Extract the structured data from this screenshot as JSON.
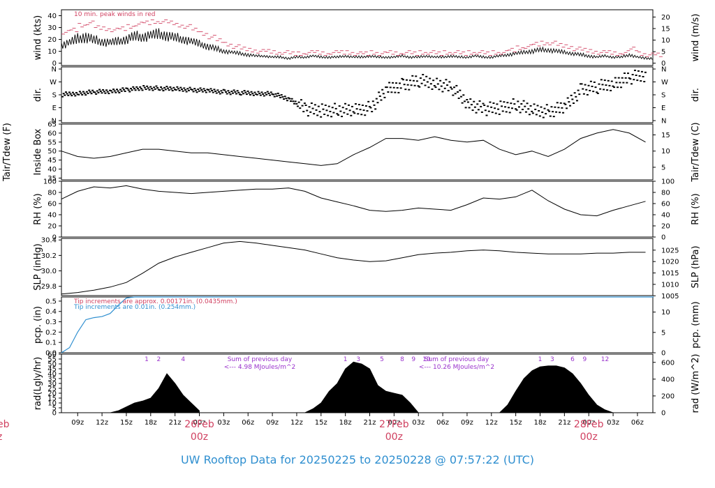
{
  "chart_data": {
    "type": "line",
    "title": "UW Rooftop Data for 20250225  to  20250228 @ 07:57:22  (UTC)",
    "x_ticks": [
      "09z",
      "12z",
      "15z",
      "18z",
      "21z",
      "00z",
      "03z",
      "06z",
      "09z",
      "12z",
      "15z",
      "18z",
      "21z",
      "00z",
      "03z",
      "06z",
      "09z",
      "12z",
      "15z",
      "18z",
      "21z",
      "00z",
      "03z",
      "06z"
    ],
    "date_labels": [
      {
        "date": "26Feb",
        "time": "00z"
      },
      {
        "date": "27Feb",
        "time": "00z"
      },
      {
        "date": "28Feb",
        "time": "00z"
      }
    ],
    "edge_date_label": {
      "date": "eb",
      "time": "z"
    },
    "x_range_hours": [
      7.0,
      79.9
    ],
    "colors": {
      "line": "#000000",
      "peak": "#d04060",
      "precip_blue": "#2f8fd0",
      "radiation_note": "#9932cc"
    },
    "panels": {
      "wind": {
        "ylabel_left": "wind (kts)",
        "ylabel_right": "wind (m/s)",
        "left_ticks": [
          "0",
          "10",
          "20",
          "30",
          "40"
        ],
        "right_ticks": [
          "0",
          "5",
          "10",
          "15",
          "20"
        ],
        "ylim": [
          -2,
          45
        ],
        "note": "10 min. peak winds in red",
        "x": [
          7,
          8,
          9,
          10,
          11,
          12,
          13,
          14,
          15,
          16,
          17,
          18,
          19,
          20,
          21,
          22,
          23,
          24,
          25,
          26,
          27,
          28,
          29,
          30,
          31,
          32,
          33,
          34,
          35,
          36,
          37,
          38,
          39,
          40,
          41,
          42,
          43,
          44,
          45,
          46,
          47,
          48,
          49,
          50,
          51,
          52,
          53,
          54,
          55,
          56,
          57,
          58,
          59,
          60,
          61,
          62,
          63,
          64,
          65,
          66,
          67,
          68,
          69,
          70,
          71,
          72,
          73,
          74,
          75,
          76,
          77,
          78,
          79,
          80
        ],
        "mean": [
          15,
          17,
          20,
          22,
          19,
          18,
          17,
          18,
          20,
          22,
          22,
          23,
          24,
          23,
          21,
          20,
          18,
          16,
          14,
          12,
          10,
          9,
          8,
          7,
          6,
          6,
          5,
          5,
          4,
          5,
          5,
          6,
          5,
          5,
          5,
          6,
          5,
          5,
          6,
          5,
          5,
          5,
          6,
          5,
          5,
          6,
          5,
          5,
          6,
          5,
          5,
          6,
          5,
          5,
          6,
          7,
          8,
          9,
          10,
          11,
          11,
          10,
          9,
          8,
          7,
          6,
          5,
          6,
          5,
          5,
          7,
          5,
          4,
          4
        ],
        "range": [
          7,
          7,
          9,
          10,
          8,
          8,
          7,
          7,
          8,
          9,
          9,
          9,
          9,
          9,
          8,
          8,
          7,
          6,
          6,
          5,
          4,
          3,
          3,
          3,
          2,
          2,
          2,
          2,
          2,
          2,
          2,
          2,
          2,
          2,
          2,
          2,
          2,
          2,
          2,
          2,
          2,
          2,
          2,
          2,
          2,
          2,
          2,
          2,
          2,
          2,
          2,
          2,
          2,
          2,
          2,
          3,
          3,
          3,
          4,
          4,
          4,
          4,
          3,
          3,
          3,
          3,
          2,
          2,
          2,
          2,
          3,
          2,
          2,
          2
        ],
        "peak": [
          26,
          28,
          32,
          34,
          30,
          29,
          28,
          29,
          31,
          33,
          34,
          35,
          35,
          34,
          32,
          31,
          28,
          25,
          22,
          19,
          16,
          14,
          12,
          11,
          10,
          10,
          9,
          9,
          8,
          8,
          9,
          9,
          8,
          9,
          9,
          9,
          8,
          8,
          9,
          8,
          9,
          8,
          9,
          8,
          9,
          9,
          8,
          9,
          9,
          8,
          9,
          9,
          8,
          9,
          9,
          11,
          13,
          14,
          16,
          17,
          17,
          15,
          14,
          12,
          11,
          10,
          9,
          9,
          8,
          9,
          12,
          8,
          7,
          7
        ]
      },
      "direction": {
        "ylabel": "dir.",
        "labels": [
          "N",
          "E",
          "S",
          "W",
          "N"
        ],
        "ylim": [
          0,
          360
        ],
        "x": [
          7,
          9,
          11,
          13,
          15,
          17,
          19,
          21,
          23,
          25,
          27,
          29,
          31,
          33,
          35,
          37,
          39,
          41,
          43,
          45,
          47,
          49,
          51,
          53,
          55,
          57,
          59,
          61,
          63,
          65,
          67,
          69,
          71,
          73,
          75,
          77,
          79
        ],
        "values": [
          182,
          190,
          200,
          205,
          215,
          228,
          225,
          220,
          215,
          208,
          200,
          195,
          190,
          185,
          150,
          80,
          70,
          75,
          70,
          90,
          215,
          250,
          280,
          260,
          230,
          120,
          80,
          90,
          110,
          70,
          65,
          95,
          220,
          235,
          260,
          300,
          320
        ]
      },
      "temperature": {
        "ylabel_left": "Tair/Tdew (F)\nInside Box",
        "ylabel_right": "Tair/Tdew (C)",
        "left_ticks": [
          "35",
          "40",
          "45",
          "50",
          "55",
          "60",
          "65"
        ],
        "right_ticks": [
          "5",
          "10",
          "15"
        ],
        "ylim": [
          34,
          65
        ],
        "x": [
          7,
          9,
          11,
          13,
          15,
          17,
          19,
          21,
          23,
          25,
          27,
          29,
          31,
          33,
          35,
          37,
          39,
          41,
          43,
          45,
          47,
          49,
          51,
          53,
          55,
          57,
          59,
          61,
          63,
          65,
          67,
          69,
          71,
          73,
          75,
          77,
          79
        ],
        "values": [
          50,
          47,
          46,
          47,
          49,
          51,
          51,
          50,
          49,
          49,
          48,
          47,
          46,
          45,
          44,
          43,
          42,
          43,
          48,
          52,
          57,
          57,
          56,
          58,
          56,
          55,
          56,
          51,
          48,
          50,
          47,
          51,
          57,
          60,
          62,
          60,
          55
        ]
      },
      "humidity": {
        "ylabel_left": "RH (%)",
        "ylabel_right": "RH (%)",
        "ticks": [
          "0",
          "20",
          "40",
          "60",
          "80",
          "100"
        ],
        "ylim": [
          0,
          100
        ],
        "x": [
          7,
          9,
          11,
          13,
          15,
          17,
          19,
          21,
          23,
          25,
          27,
          29,
          31,
          33,
          35,
          37,
          39,
          41,
          43,
          45,
          47,
          49,
          51,
          53,
          55,
          57,
          59,
          61,
          63,
          65,
          67,
          69,
          71,
          73,
          75,
          77,
          79
        ],
        "values": [
          68,
          82,
          90,
          88,
          92,
          86,
          82,
          80,
          78,
          80,
          82,
          84,
          86,
          86,
          88,
          82,
          70,
          63,
          56,
          48,
          46,
          48,
          52,
          50,
          48,
          58,
          70,
          68,
          72,
          84,
          65,
          50,
          40,
          38,
          48,
          56,
          64
        ]
      },
      "pressure": {
        "ylabel_left": "SLP (inHg)",
        "ylabel_right": "SLP (hPa)",
        "left_ticks": [
          "29.8",
          "30.0",
          "30.2",
          "30.4"
        ],
        "right_ticks": [
          "1005",
          "1010",
          "1015",
          "1020",
          "1025"
        ],
        "ylim": [
          29.68,
          30.42
        ],
        "x": [
          7,
          9,
          11,
          13,
          15,
          17,
          19,
          21,
          23,
          25,
          27,
          29,
          31,
          33,
          35,
          37,
          39,
          41,
          43,
          45,
          47,
          49,
          51,
          53,
          55,
          57,
          59,
          61,
          63,
          65,
          67,
          69,
          71,
          73,
          75,
          77,
          79
        ],
        "values": [
          29.7,
          29.72,
          29.75,
          29.79,
          29.85,
          29.97,
          30.1,
          30.18,
          30.24,
          30.3,
          30.36,
          30.38,
          30.36,
          30.33,
          30.3,
          30.27,
          30.22,
          30.17,
          30.14,
          30.12,
          30.13,
          30.17,
          30.21,
          30.23,
          30.24,
          30.26,
          30.27,
          30.26,
          30.24,
          30.23,
          30.22,
          30.22,
          30.22,
          30.23,
          30.23,
          30.24,
          30.24
        ]
      },
      "precipitation": {
        "ylabel_left": "pcp. (in)",
        "ylabel_right": "pcp. (mm)",
        "left_ticks": [
          "0.0",
          "0.1",
          "0.2",
          "0.3",
          "0.4",
          "0.5"
        ],
        "right_ticks": [
          "0",
          "5",
          "10"
        ],
        "ylim": [
          0,
          0.54
        ],
        "note_red": "Tip increments are approx. 0.00171in. (0.0435mm.)",
        "note_blue": "Tip increments are 0.01in. (0.254mm.)",
        "x": [
          7,
          8,
          9,
          10,
          11,
          12,
          13,
          14,
          15,
          16,
          80
        ],
        "values": [
          0.0,
          0.05,
          0.2,
          0.32,
          0.34,
          0.35,
          0.38,
          0.46,
          0.53,
          0.54,
          0.54
        ]
      },
      "radiation": {
        "ylabel_left": "rad(Lgly/hr)",
        "ylabel_right": "rad (W/m^2)",
        "left_ticks": [
          "0",
          "5",
          "10",
          "15",
          "20",
          "25",
          "30",
          "35",
          "40",
          "45",
          "50",
          "55",
          "60"
        ],
        "right_ticks": [
          "0",
          "200",
          "400",
          "600"
        ],
        "ylim": [
          0,
          60
        ],
        "hour_markers": [
          {
            "label": "1",
            "x": 17.5
          },
          {
            "label": "2",
            "x": 19
          },
          {
            "label": "4",
            "x": 22
          },
          {
            "label": "1",
            "x": 42
          },
          {
            "label": "3",
            "x": 43.6
          },
          {
            "label": "5",
            "x": 46.5
          },
          {
            "label": "8",
            "x": 49
          },
          {
            "label": "9",
            "x": 50.4
          },
          {
            "label": "10",
            "x": 52
          },
          {
            "label": "1",
            "x": 66
          },
          {
            "label": "3",
            "x": 67.5
          },
          {
            "label": "6",
            "x": 70
          },
          {
            "label": "9",
            "x": 71.5
          },
          {
            "label": "12",
            "x": 74
          }
        ],
        "notes": [
          {
            "line1": "Sum of previous day",
            "line2": "<--- 4.98 MJoules/m^2"
          },
          {
            "line1": "Sum of previous day",
            "line2": "<--- 10.26 MJoules/m^2"
          }
        ],
        "days": [
          {
            "x": [
              13,
              14,
              15,
              16,
              17,
              18,
              19,
              20,
              21,
              22,
              23,
              24
            ],
            "values": [
              0,
              2,
              6,
              10,
              12,
              15,
              25,
              40,
              30,
              18,
              10,
              2
            ]
          },
          {
            "x": [
              37,
              38,
              39,
              40,
              41,
              42,
              43,
              44,
              45,
              46,
              47,
              48,
              49,
              50,
              51
            ],
            "values": [
              0,
              4,
              10,
              22,
              30,
              45,
              52,
              50,
              45,
              28,
              22,
              20,
              18,
              10,
              0
            ]
          },
          {
            "x": [
              61,
              62,
              63,
              64,
              65,
              66,
              67,
              68,
              69,
              70,
              71,
              72,
              73,
              74,
              75
            ],
            "values": [
              0,
              8,
              22,
              35,
              43,
              47,
              48,
              48,
              46,
              40,
              30,
              18,
              8,
              3,
              0
            ]
          }
        ]
      }
    }
  }
}
